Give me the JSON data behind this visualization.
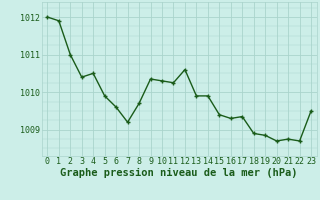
{
  "x": [
    0,
    1,
    2,
    3,
    4,
    5,
    6,
    7,
    8,
    9,
    10,
    11,
    12,
    13,
    14,
    15,
    16,
    17,
    18,
    19,
    20,
    21,
    22,
    23
  ],
  "y": [
    1012.0,
    1011.9,
    1011.0,
    1010.4,
    1010.5,
    1009.9,
    1009.6,
    1009.2,
    1009.7,
    1010.35,
    1010.3,
    1010.25,
    1010.6,
    1009.9,
    1009.9,
    1009.4,
    1009.3,
    1009.35,
    1008.9,
    1008.85,
    1008.7,
    1008.75,
    1008.7,
    1009.5
  ],
  "line_color": "#1a5c1a",
  "marker": "+",
  "marker_size": 3,
  "marker_linewidth": 1.0,
  "bg_color": "#cceee8",
  "grid_color": "#aad4cc",
  "xlabel": "Graphe pression niveau de la mer (hPa)",
  "xlabel_color": "#1a5c1a",
  "xlabel_fontsize": 7.5,
  "yticks": [
    1009,
    1010,
    1011,
    1012
  ],
  "xticks": [
    0,
    1,
    2,
    3,
    4,
    5,
    6,
    7,
    8,
    9,
    10,
    11,
    12,
    13,
    14,
    15,
    16,
    17,
    18,
    19,
    20,
    21,
    22,
    23
  ],
  "ylim": [
    1008.3,
    1012.4
  ],
  "xlim": [
    -0.5,
    23.5
  ],
  "tick_color": "#1a5c1a",
  "tick_fontsize": 6.0,
  "line_width": 1.0
}
